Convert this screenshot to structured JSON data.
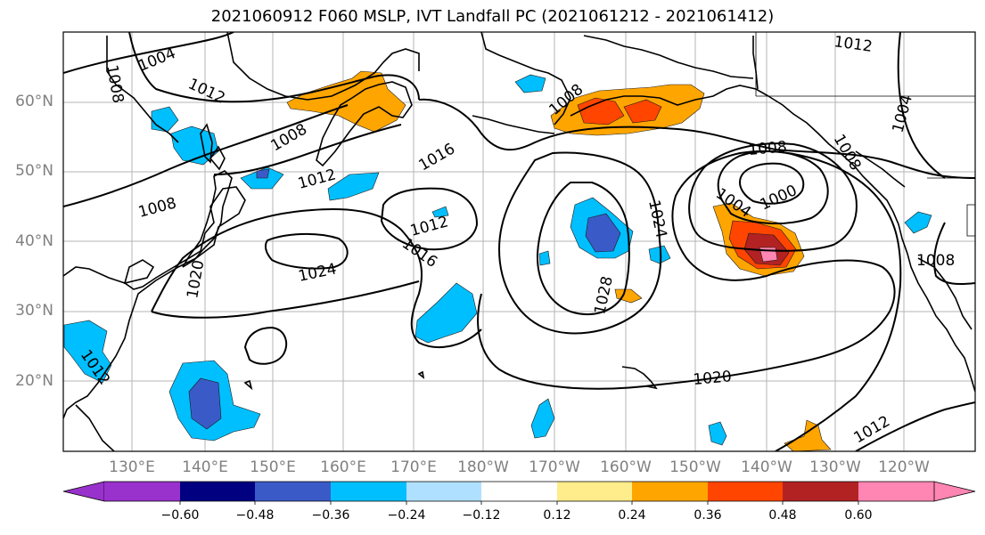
{
  "title": "2021060912 F060 MSLP, IVT Landfall PC (2021061212 - 2021061412)",
  "lat_labels": [
    "60°N",
    "50°N",
    "40°N",
    "30°N",
    "20°N"
  ],
  "lon_labels": [
    "130°E",
    "140°E",
    "150°E",
    "160°E",
    "170°E",
    "180°W",
    "170°W",
    "160°W",
    "150°W",
    "140°W",
    "130°W",
    "120°W"
  ],
  "colorbar": {
    "ticks": [
      "−0.60",
      "−0.48",
      "−0.36",
      "−0.24",
      "−0.12",
      "0.12",
      "0.24",
      "0.36",
      "0.48",
      "0.60"
    ],
    "colors": [
      "#9932cc",
      "#000080",
      "#3a5bc7",
      "#00bfff",
      "#b0e0ff",
      "#ffffff",
      "#ffec8b",
      "#ffa500",
      "#ff4500",
      "#b22222",
      "#ff85b3"
    ]
  },
  "isobar_labels": {
    "l1004a": "1004",
    "l1008a": "1008",
    "l1012a": "1012",
    "l1008b": "1008",
    "l1012b": "1012",
    "l1016a": "1016",
    "l1008c": "1008",
    "l1012c": "1012",
    "l1016b": "1016",
    "l1024a": "1024",
    "l1020a": "1020",
    "l1008d": "1008",
    "l1024b": "1024",
    "l1028": "1028",
    "l1012d": "1012",
    "l1008e": "1008",
    "l1004b": "1004",
    "l1000": "1000",
    "l1008f": "1008",
    "l1004c": "1004",
    "l1008g": "1008",
    "l1020b": "1020",
    "l1012e": "1012",
    "l1012f": "1012"
  }
}
